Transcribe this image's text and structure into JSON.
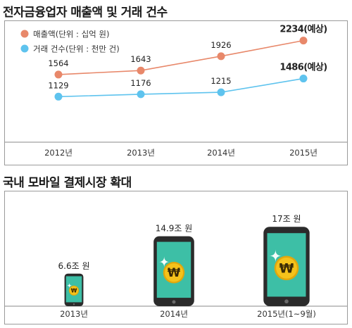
{
  "chart_data": [
    {
      "type": "line",
      "title": "전자금융업자 매출액 및 거래 건수",
      "categories": [
        "2012년",
        "2013년",
        "2014년",
        "2015년"
      ],
      "series": [
        {
          "name": "매출액(단위 : 십억 원)",
          "values": [
            1564,
            1643,
            1926,
            2234
          ],
          "labels": [
            "1564",
            "1643",
            "1926",
            "2234(예상)"
          ],
          "color": "#e8886a"
        },
        {
          "name": "거래 건수(단위 : 천만 건)",
          "values": [
            1129,
            1176,
            1215,
            1486
          ],
          "labels": [
            "1129",
            "1176",
            "1215",
            "1486(예상)"
          ],
          "color": "#5ec3ee"
        }
      ],
      "grid": false,
      "legend": "top-left"
    },
    {
      "type": "bar",
      "title": "국내 모바일 결제시장 확대",
      "categories": [
        "2013년",
        "2014년",
        "2015년(1~9월)"
      ],
      "values": [
        6.6,
        14.9,
        17
      ],
      "labels": [
        "6.6조 원",
        "14.9조 원",
        "17조 원"
      ],
      "mark": "smartphone-with-won-coin",
      "colors": {
        "screen": "#3dbfa6",
        "coin": "#f5c21b",
        "body": "#2b2b2b"
      }
    }
  ]
}
